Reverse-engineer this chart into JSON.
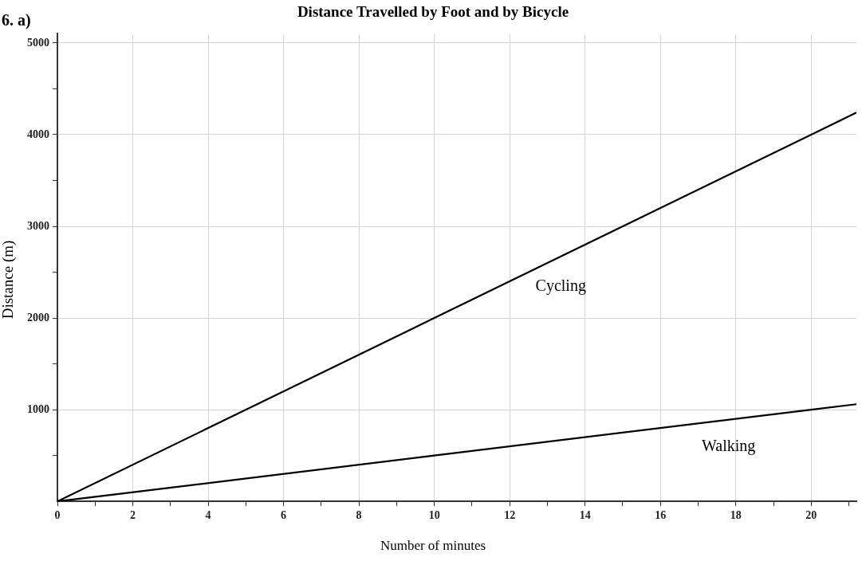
{
  "chart_data": {
    "type": "line",
    "title": "Distance Travelled by Foot and by Bicycle",
    "xlabel": "Number of minutes",
    "ylabel": "Distance (m)",
    "annotations": [
      "6. a)"
    ],
    "x": [
      0,
      10,
      20,
      21.2
    ],
    "series": [
      {
        "name": "Cycling",
        "color": "#000000",
        "values": [
          0,
          2000,
          4000,
          4240
        ]
      },
      {
        "name": "Walking",
        "color": "#000000",
        "values": [
          0,
          500,
          1000,
          1060
        ]
      }
    ],
    "xlim": [
      0,
      21.2
    ],
    "ylim": [
      0,
      5100
    ],
    "xticks": [
      0,
      {
        "value": 1,
        "label": null
      },
      2,
      {
        "value": 3,
        "label": null
      },
      4,
      {
        "value": 5,
        "label": null
      },
      6,
      {
        "value": 7,
        "label": null
      },
      8,
      {
        "value": 9,
        "label": null
      },
      10,
      {
        "value": 11,
        "label": null
      },
      12,
      {
        "value": 13,
        "label": null
      },
      14,
      {
        "value": 15,
        "label": null
      },
      16,
      {
        "value": 17,
        "label": null
      },
      18,
      {
        "value": 19,
        "label": null
      },
      20,
      {
        "value": 21,
        "label": null
      }
    ],
    "yticks": [
      {
        "value": 500,
        "label": null
      },
      1000,
      {
        "value": 1500,
        "label": null
      },
      2000,
      {
        "value": 2500,
        "label": null
      },
      3000,
      {
        "value": 3500,
        "label": null
      },
      4000,
      {
        "value": 4500,
        "label": null
      },
      5000
    ],
    "grid": true,
    "legend": false,
    "marker": "none",
    "line_style": "solid"
  }
}
